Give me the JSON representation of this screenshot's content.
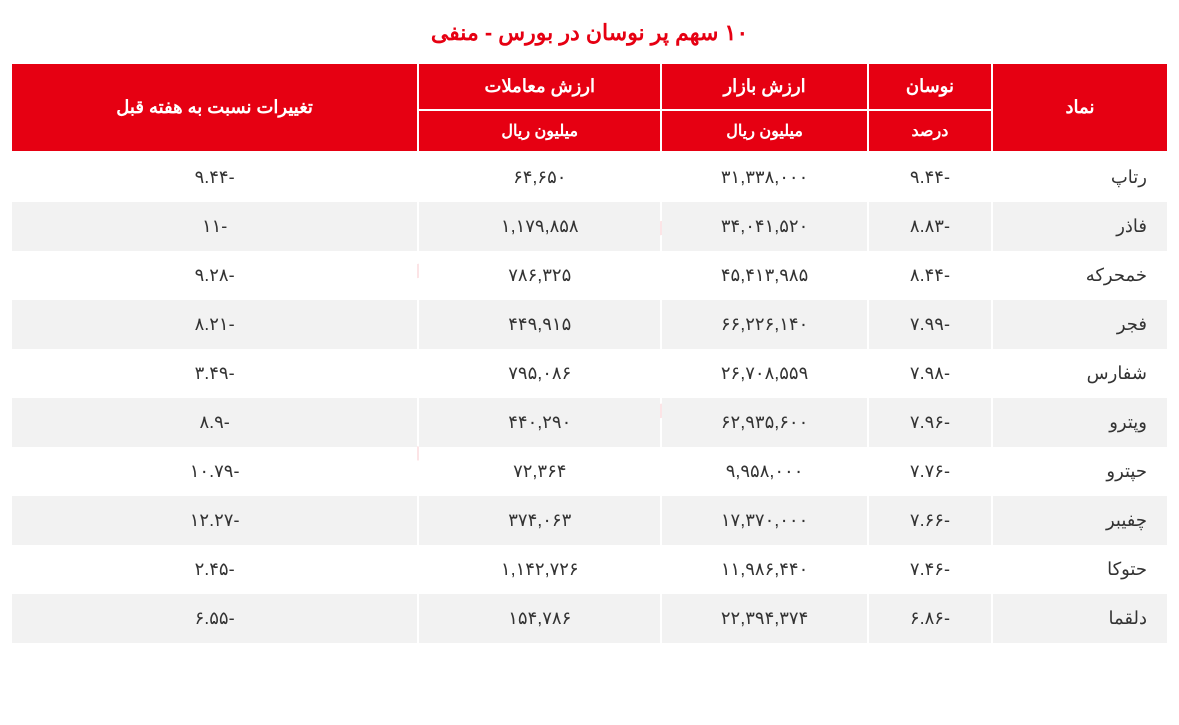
{
  "title": "۱۰ سهم پر نوسان در بورس - منفی",
  "colors": {
    "title": "#e60012",
    "header_bg": "#e60012",
    "header_text": "#ffffff",
    "row_even": "#f2f2f2",
    "row_odd": "#ffffff",
    "cell_text": "#333333",
    "border_gap": "#ffffff"
  },
  "typography": {
    "title_fontsize": 22,
    "header_fontsize": 18,
    "cell_fontsize": 18
  },
  "table": {
    "columns": [
      {
        "key": "symbol",
        "header": "نماد",
        "sub": "",
        "rowspan": 2,
        "align": "right"
      },
      {
        "key": "fluctuation",
        "header": "نوسان",
        "sub": "درصد",
        "align": "center"
      },
      {
        "key": "market_value",
        "header": "ارزش بازار",
        "sub": "میلیون ریال",
        "align": "center"
      },
      {
        "key": "trade_value",
        "header": "ارزش معاملات",
        "sub": "میلیون ریال",
        "align": "center"
      },
      {
        "key": "week_change",
        "header": "تغییرات نسبت به هفته قبل",
        "sub": "",
        "rowspan": 2,
        "align": "center"
      }
    ],
    "rows": [
      {
        "symbol": "رتاپ",
        "fluctuation": "-۹.۴۴",
        "market_value": "۳۱,۳۳۸,۰۰۰",
        "trade_value": "۶۴,۶۵۰",
        "week_change": "-۹.۴۴"
      },
      {
        "symbol": "فاذر",
        "fluctuation": "-۸.۸۳",
        "market_value": "۳۴,۰۴۱,۵۲۰",
        "trade_value": "۱,۱۷۹,۸۵۸",
        "week_change": "-۱۱"
      },
      {
        "symbol": "خمحرکه",
        "fluctuation": "-۸.۴۴",
        "market_value": "۴۵,۴۱۳,۹۸۵",
        "trade_value": "۷۸۶,۳۲۵",
        "week_change": "-۹.۲۸"
      },
      {
        "symbol": "فجر",
        "fluctuation": "-۷.۹۹",
        "market_value": "۶۶,۲۲۶,۱۴۰",
        "trade_value": "۴۴۹,۹۱۵",
        "week_change": "-۸.۲۱"
      },
      {
        "symbol": "شفارس",
        "fluctuation": "-۷.۹۸",
        "market_value": "۲۶,۷۰۸,۵۵۹",
        "trade_value": "۷۹۵,۰۸۶",
        "week_change": "-۳.۴۹"
      },
      {
        "symbol": "وپترو",
        "fluctuation": "-۷.۹۶",
        "market_value": "۶۲,۹۳۵,۶۰۰",
        "trade_value": "۴۴۰,۲۹۰",
        "week_change": "-۸.۹"
      },
      {
        "symbol": "حپترو",
        "fluctuation": "-۷.۷۶",
        "market_value": "۹,۹۵۸,۰۰۰",
        "trade_value": "۷۲,۳۶۴",
        "week_change": "-۱۰.۷۹"
      },
      {
        "symbol": "چفیبر",
        "fluctuation": "-۷.۶۶",
        "market_value": "۱۷,۳۷۰,۰۰۰",
        "trade_value": "۳۷۴,۰۶۳",
        "week_change": "-۱۲.۲۷"
      },
      {
        "symbol": "حتوکا",
        "fluctuation": "-۷.۴۶",
        "market_value": "۱۱,۹۸۶,۴۴۰",
        "trade_value": "۱,۱۴۲,۷۲۶",
        "week_change": "-۲.۴۵"
      },
      {
        "symbol": "دلقما",
        "fluctuation": "-۶.۸۶",
        "market_value": "۲۲,۳۹۴,۳۷۴",
        "trade_value": "۱۵۴,۷۸۶",
        "week_change": "-۶.۵۵"
      }
    ]
  }
}
